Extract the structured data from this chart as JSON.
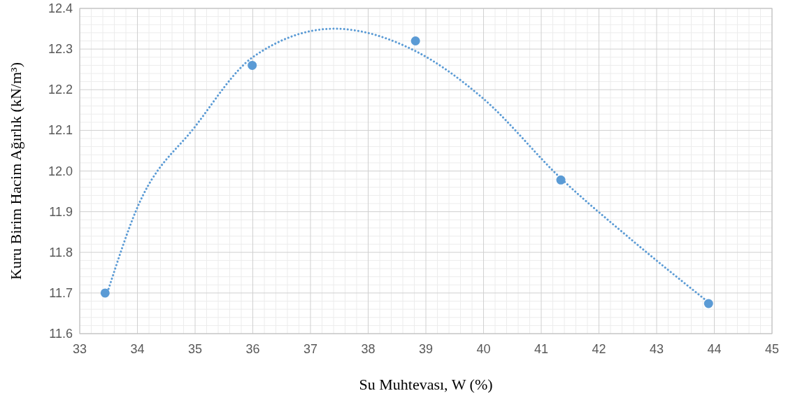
{
  "chart_data": {
    "type": "scatter",
    "xlabel": "Su Muhtevası, W (%)",
    "ylabel": "Kuru Birim Hacim Ağırlık (kN/m³)",
    "xlim": [
      33,
      45
    ],
    "xticks": [
      33,
      34,
      35,
      36,
      37,
      38,
      39,
      40,
      41,
      42,
      43,
      44,
      45
    ],
    "ylim": [
      11.6,
      12.4
    ],
    "yticks": [
      11.6,
      11.7,
      11.8,
      11.9,
      {
        "value": 12,
        "label": "12.0"
      },
      12.1,
      12.2,
      12.3,
      12.4
    ],
    "grid": true,
    "marker": "circle",
    "series": [
      {
        "color": "#5b9bd5",
        "x": [
          33.44,
          35.99,
          38.82,
          41.34,
          43.9
        ],
        "values": [
          11.7,
          12.26,
          12.32,
          11.978,
          11.674
        ]
      },
      {
        "type": "line",
        "color": "#5b9bd5",
        "line_style": "dotted",
        "marker": "none",
        "x": [
          33.5,
          33.98,
          35.01,
          36.0,
          37.41,
          38.82,
          39.98,
          41.34,
          42.53,
          43.9
        ],
        "values": [
          11.71,
          11.904,
          12.111,
          12.28,
          12.35,
          12.295,
          12.18,
          11.982,
          11.835,
          11.677
        ]
      }
    ]
  }
}
